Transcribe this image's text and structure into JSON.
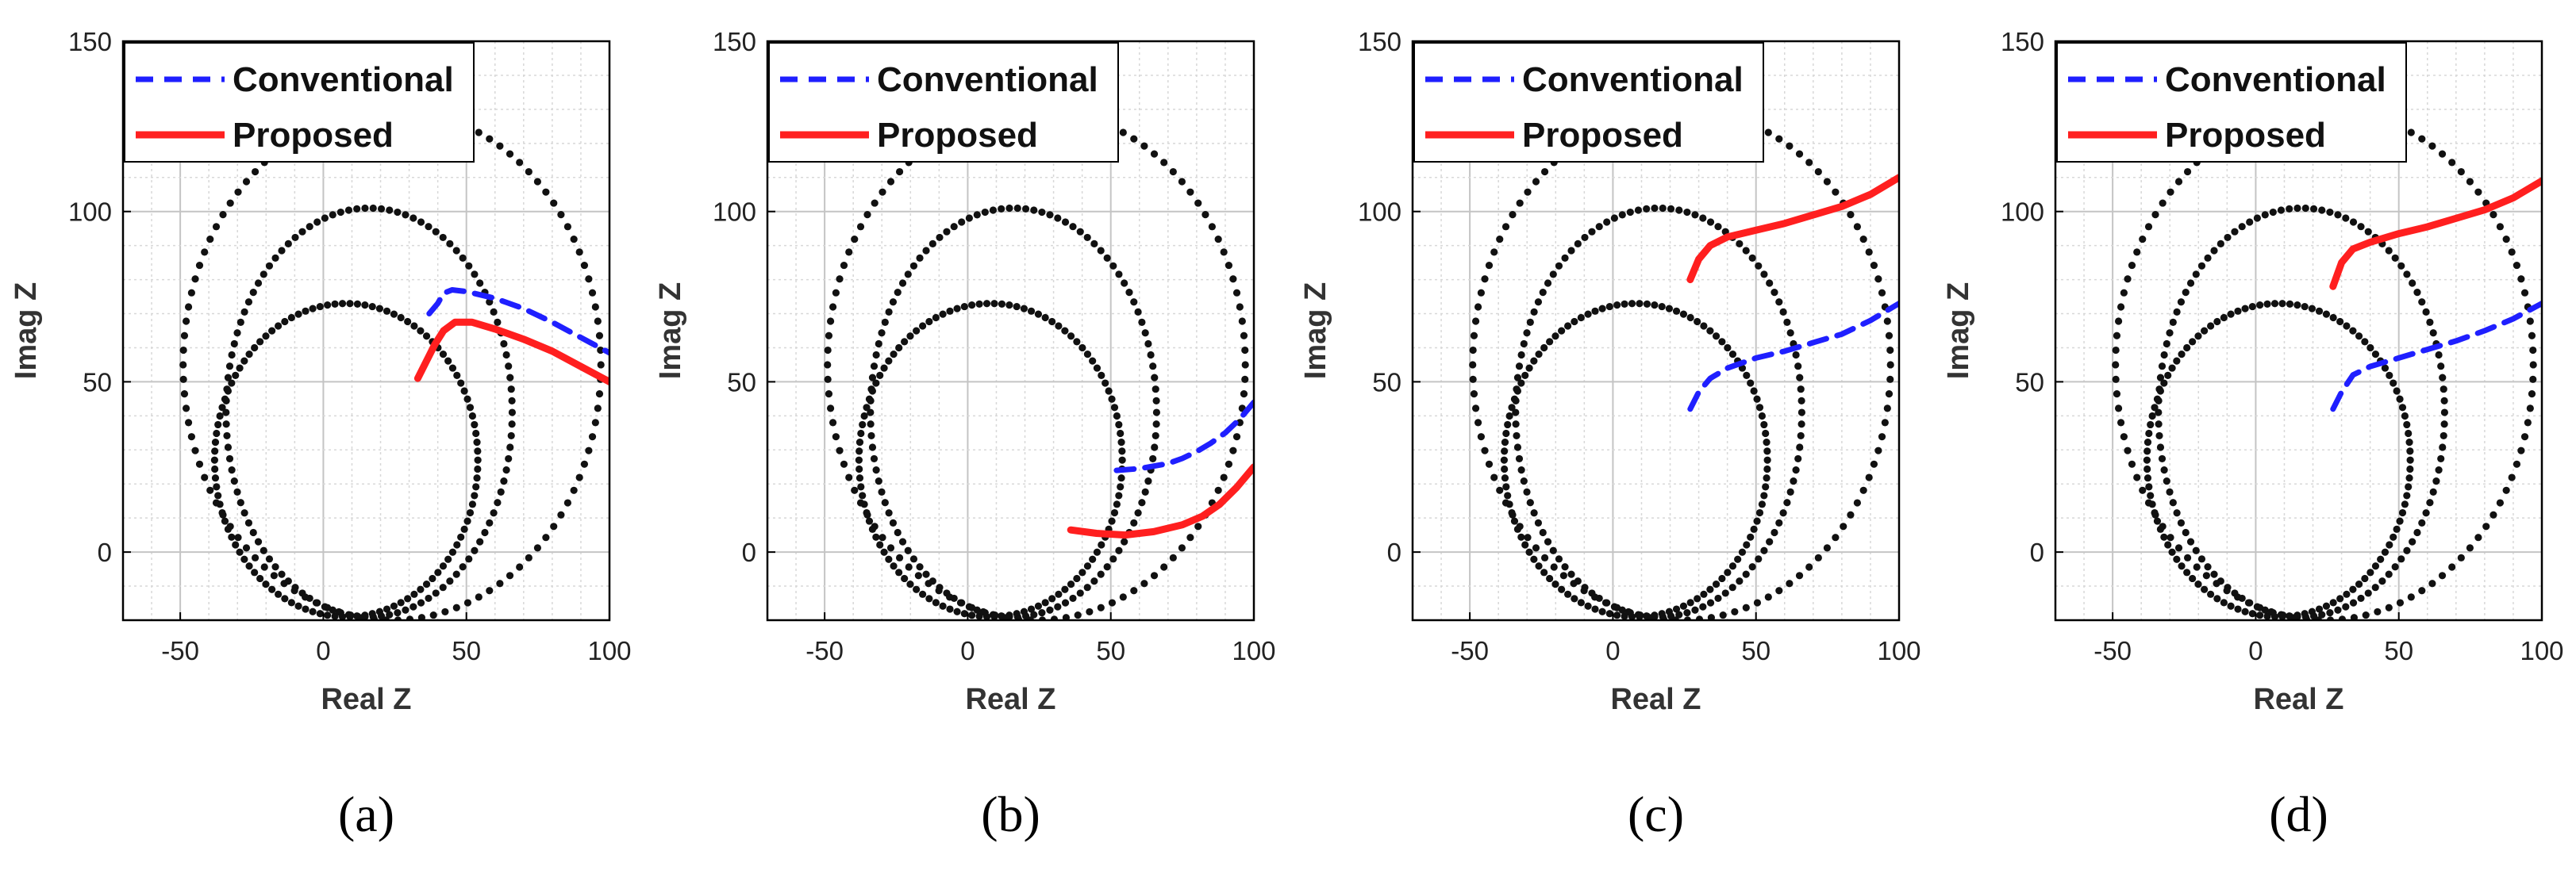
{
  "figure": {
    "panel_labels": [
      "(a)",
      "(b)",
      "(c)",
      "(d)"
    ],
    "colors": {
      "conventional": "#1f1fff",
      "proposed": "#ff1f1f",
      "circles": "#111111",
      "grid": "#d8d8d8",
      "axes": "#000000"
    }
  },
  "chart_data": [
    {
      "type": "line",
      "panel": "(a)",
      "xlabel": "Real Z",
      "ylabel": "Imag Z",
      "xlim": [
        -70,
        100
      ],
      "ylim": [
        -20,
        150
      ],
      "xticks": [
        -50,
        0,
        50,
        100
      ],
      "yticks": [
        0,
        50,
        100,
        150
      ],
      "grid": true,
      "legend": "top-left",
      "series": [
        {
          "name": "Conventional",
          "style": "dashed",
          "color": "#1f1fff",
          "x": [
            37,
            40,
            42,
            45,
            50,
            60,
            70,
            80,
            90,
            100
          ],
          "y": [
            70,
            73,
            76,
            77,
            76.5,
            74.5,
            71.5,
            67.5,
            63,
            58.5
          ]
        },
        {
          "name": "Proposed",
          "style": "solid",
          "color": "#ff1f1f",
          "x": [
            33,
            36,
            39,
            42,
            46,
            52,
            60,
            70,
            80,
            90,
            100
          ],
          "y": [
            51,
            56,
            61,
            65,
            67.5,
            67.5,
            65.5,
            62.5,
            59,
            54.5,
            50
          ]
        }
      ],
      "circles": [
        {
          "name": "circle-1",
          "center": [
            8,
            27
          ],
          "rx": 46,
          "ry": 46
        },
        {
          "name": "circle-2",
          "center": [
            16,
            41
          ],
          "rx": 50,
          "ry": 60
        },
        {
          "name": "circle-3",
          "center": [
            24,
            55
          ],
          "rx": 73,
          "ry": 75
        }
      ]
    },
    {
      "type": "line",
      "panel": "(b)",
      "xlabel": "Real Z",
      "ylabel": "Imag Z",
      "xlim": [
        -70,
        100
      ],
      "ylim": [
        -20,
        150
      ],
      "xticks": [
        -50,
        0,
        50,
        100
      ],
      "yticks": [
        0,
        50,
        100,
        150
      ],
      "grid": true,
      "legend": "top-left",
      "series": [
        {
          "name": "Conventional",
          "style": "dashed",
          "color": "#1f1fff",
          "x": [
            52,
            60,
            70,
            75,
            80,
            85,
            90,
            95,
            100
          ],
          "y": [
            24,
            24.5,
            26,
            27.5,
            29.5,
            32,
            35,
            39,
            44
          ]
        },
        {
          "name": "Proposed",
          "style": "solid",
          "color": "#ff1f1f",
          "x": [
            36,
            45,
            55,
            65,
            75,
            82,
            88,
            94,
            100
          ],
          "y": [
            6.5,
            5.5,
            5,
            6,
            8,
            10.5,
            14,
            19,
            25
          ]
        }
      ],
      "circles": [
        {
          "name": "circle-1",
          "center": [
            8,
            27
          ],
          "rx": 46,
          "ry": 46
        },
        {
          "name": "circle-2",
          "center": [
            16,
            41
          ],
          "rx": 50,
          "ry": 60
        },
        {
          "name": "circle-3",
          "center": [
            24,
            55
          ],
          "rx": 73,
          "ry": 75
        }
      ]
    },
    {
      "type": "line",
      "panel": "(c)",
      "xlabel": "Real Z",
      "ylabel": "Imag Z",
      "xlim": [
        -70,
        100
      ],
      "ylim": [
        -20,
        150
      ],
      "xticks": [
        -50,
        0,
        50,
        100
      ],
      "yticks": [
        0,
        50,
        100,
        150
      ],
      "grid": true,
      "legend": "top-left",
      "series": [
        {
          "name": "Conventional",
          "style": "dashed",
          "color": "#1f1fff",
          "x": [
            27,
            30,
            34,
            40,
            50,
            60,
            70,
            80,
            90,
            100
          ],
          "y": [
            42,
            47,
            51,
            54,
            57,
            59,
            61.5,
            64,
            68,
            73
          ]
        },
        {
          "name": "Proposed",
          "style": "solid",
          "color": "#ff1f1f",
          "x": [
            27,
            30,
            34,
            40,
            50,
            60,
            70,
            80,
            90,
            100
          ],
          "y": [
            80,
            86,
            90,
            92.5,
            94.5,
            96.5,
            99,
            101.5,
            105,
            110
          ]
        }
      ],
      "circles": [
        {
          "name": "circle-1",
          "center": [
            8,
            27
          ],
          "rx": 46,
          "ry": 46
        },
        {
          "name": "circle-2",
          "center": [
            16,
            41
          ],
          "rx": 50,
          "ry": 60
        },
        {
          "name": "circle-3",
          "center": [
            24,
            55
          ],
          "rx": 73,
          "ry": 75
        }
      ]
    },
    {
      "type": "line",
      "panel": "(d)",
      "xlabel": "Real Z",
      "ylabel": "Imag Z",
      "xlim": [
        -70,
        100
      ],
      "ylim": [
        -20,
        150
      ],
      "xticks": [
        -50,
        0,
        50,
        100
      ],
      "yticks": [
        0,
        50,
        100,
        150
      ],
      "grid": true,
      "legend": "top-left",
      "series": [
        {
          "name": "Conventional",
          "style": "dashed",
          "color": "#1f1fff",
          "x": [
            27,
            30,
            34,
            40,
            50,
            60,
            70,
            80,
            90,
            100
          ],
          "y": [
            42,
            47,
            52,
            54.5,
            57,
            59.5,
            62,
            65,
            68.5,
            73
          ]
        },
        {
          "name": "Proposed",
          "style": "solid",
          "color": "#ff1f1f",
          "x": [
            27,
            30,
            34,
            40,
            50,
            60,
            70,
            80,
            90,
            100
          ],
          "y": [
            78,
            85,
            89,
            91,
            93.5,
            95.5,
            98,
            100.5,
            104,
            109
          ]
        }
      ],
      "circles": [
        {
          "name": "circle-1",
          "center": [
            8,
            27
          ],
          "rx": 46,
          "ry": 46
        },
        {
          "name": "circle-2",
          "center": [
            16,
            41
          ],
          "rx": 50,
          "ry": 60
        },
        {
          "name": "circle-3",
          "center": [
            24,
            55
          ],
          "rx": 73,
          "ry": 75
        }
      ]
    }
  ]
}
